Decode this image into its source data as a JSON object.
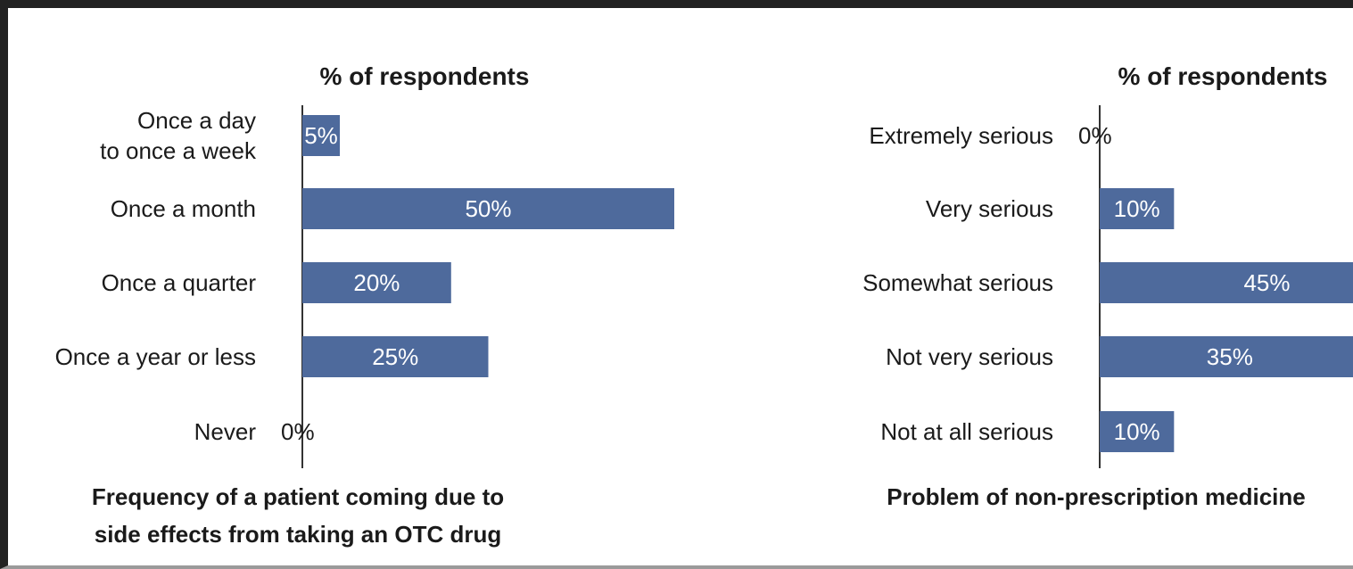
{
  "chart_data": [
    {
      "type": "bar",
      "orientation": "horizontal",
      "title": [
        "Frequency of a patient coming due to",
        "side effects from taking an OTC drug"
      ],
      "unit_label": "% of respondents",
      "categories": [
        [
          "Once a day",
          "to once a week"
        ],
        [
          "Once a month"
        ],
        [
          "Once a quarter"
        ],
        [
          "Once a year or less"
        ],
        [
          "Never"
        ]
      ],
      "values": [
        5,
        50,
        20,
        25,
        0
      ],
      "data_labels": [
        "5%",
        "50%",
        "20%",
        "25%",
        "0%"
      ],
      "xlim": [
        0,
        50
      ],
      "bar_color": "#4e6a9c",
      "grid": false,
      "legend": "none"
    },
    {
      "type": "bar",
      "orientation": "horizontal",
      "title": [
        "Problem of non-prescription medicine"
      ],
      "unit_label": "% of respondents",
      "categories": [
        [
          "Extremely serious"
        ],
        [
          "Very serious"
        ],
        [
          "Somewhat serious"
        ],
        [
          "Not very serious"
        ],
        [
          "Not at all serious"
        ]
      ],
      "values": [
        0,
        10,
        45,
        35,
        10
      ],
      "data_labels": [
        "0%",
        "10%",
        "45%",
        "35%",
        "10%"
      ],
      "xlim": [
        0,
        45
      ],
      "bar_color": "#4e6a9c",
      "grid": false,
      "legend": "none"
    }
  ]
}
